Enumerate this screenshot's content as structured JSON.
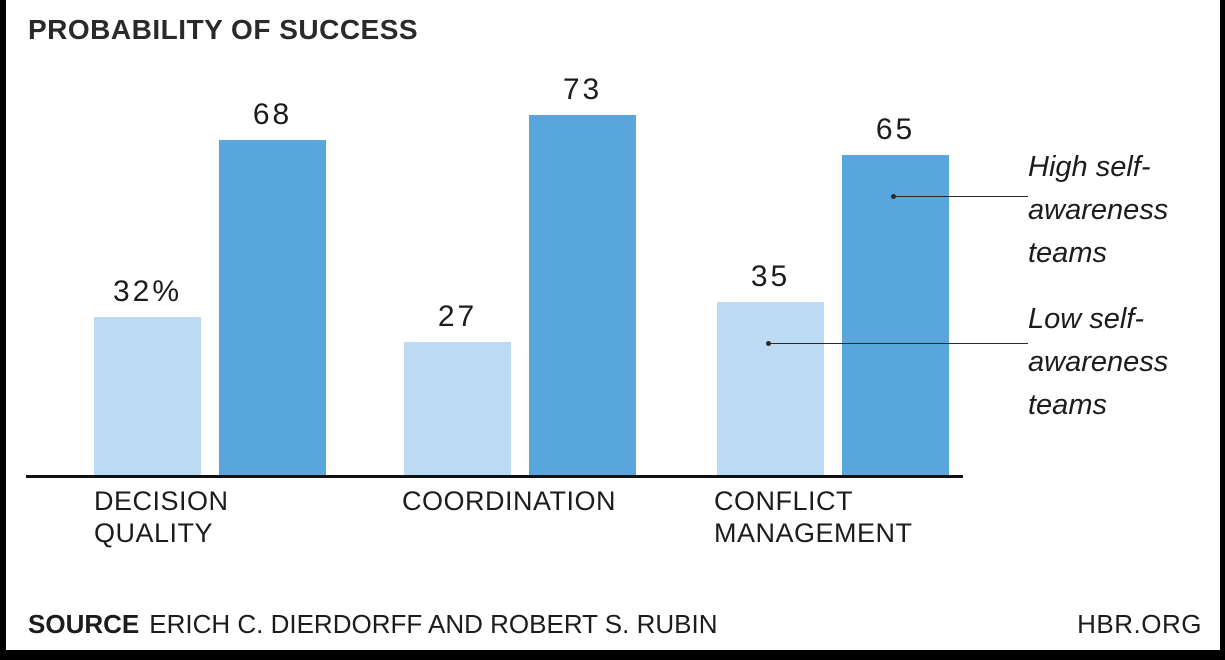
{
  "chart_data": {
    "type": "bar",
    "title": "PROBABILITY OF SUCCESS",
    "categories": [
      "DECISION QUALITY",
      "COORDINATION",
      "CONFLICT MANAGEMENT"
    ],
    "tick_labels": [
      "DECISION\nQUALITY",
      "COORDINATION",
      "CONFLICT\nMANAGEMENT"
    ],
    "series": [
      {
        "name": "Low self-awareness teams",
        "color": "#bcdaf1",
        "values": [
          32,
          27,
          35
        ],
        "labels": [
          "32%",
          "27",
          "35"
        ]
      },
      {
        "name": "High self-awareness teams",
        "color": "#58a6db",
        "values": [
          68,
          73,
          65
        ],
        "labels": [
          "68",
          "73",
          "65"
        ]
      }
    ],
    "ylim": [
      0,
      80
    ],
    "grid": false,
    "legend_position": "right",
    "annotations": [
      {
        "text": "High self-awareness teams",
        "points_to": "High bar of Conflict Management"
      },
      {
        "text": "Low self-awareness teams",
        "points_to": "Low bar of Conflict Management"
      }
    ]
  },
  "legend": {
    "high_label": "High self-\nawareness\nteams",
    "low_label": "Low self-\nawareness\nteams"
  },
  "footer": {
    "source_label": "SOURCE",
    "source_text": "ERICH C. DIERDORFF AND ROBERT S. RUBIN",
    "site": "HBR.ORG"
  }
}
